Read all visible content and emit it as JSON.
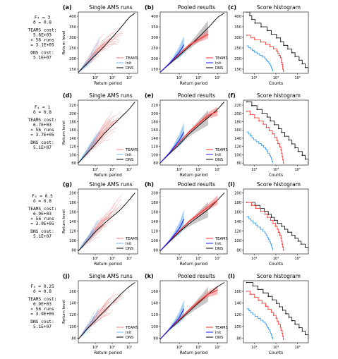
{
  "colors": {
    "teams_line": "#ff2a2a",
    "teams_single": "#f08080",
    "init_line": "#1a1aff",
    "init_single": "#7ab8f0",
    "init_band": "#5aa6ee",
    "teams_band": "#f27b7b",
    "dns_line": "#000000",
    "dns_band": "#9a9a9a",
    "init_hist": "#1e90ff"
  },
  "column_titles": [
    "Single AMS runs",
    "Pooled results",
    "Score histogram"
  ],
  "xlabels": [
    "Return period",
    "Return period",
    "Counts"
  ],
  "ylabel": "Return level",
  "legend_labels": [
    "TEAMS",
    "Init",
    "DNS"
  ],
  "rows": [
    {
      "param_line": "F₄ = 3",
      "delta_line": "δ = 0.8",
      "teams_cost_label": "TEAMS cost:",
      "teams_cost_value": "5.6E+03",
      "runs_line": "× 56 runs",
      "total_line": "= 3.1E+05",
      "dns_cost_label": "DNS cost:",
      "dns_cost_value": "5.1E+07",
      "panel_letters": [
        "(a)",
        "(b)",
        "(c)"
      ],
      "ylim": [
        130,
        420
      ],
      "yticks": [
        "150",
        "200",
        "250",
        "300",
        "350",
        "400"
      ],
      "ytick_values": [
        150,
        200,
        250,
        300,
        350,
        400
      ]
    },
    {
      "param_line": "F₄ = 1",
      "delta_line": "δ = 0.8",
      "teams_cost_label": "TEAMS cost:",
      "teams_cost_value": "6.7E+03",
      "runs_line": "× 56 runs",
      "total_line": "= 3.7E+05",
      "dns_cost_label": "DNS cost:",
      "dns_cost_value": "5.1E+07",
      "panel_letters": [
        "(d)",
        "(e)",
        "(f)"
      ],
      "ylim": [
        75,
        232
      ],
      "yticks": [
        "80",
        "100",
        "120",
        "140",
        "160",
        "180",
        "200",
        "220"
      ],
      "ytick_values": [
        80,
        100,
        120,
        140,
        160,
        180,
        200,
        220
      ]
    },
    {
      "param_line": "F₄ = 0.5",
      "delta_line": "δ = 0.8",
      "teams_cost_label": "TEAMS cost:",
      "teams_cost_value": "6.9E+03",
      "runs_line": "× 56 runs",
      "total_line": "= 3.9E+05",
      "dns_cost_label": "DNS cost:",
      "dns_cost_value": "5.1E+07",
      "panel_letters": [
        "(g)",
        "(h)",
        "(i)"
      ],
      "ylim": [
        72,
        208
      ],
      "yticks": [
        "80",
        "100",
        "120",
        "140",
        "160",
        "180",
        "200"
      ],
      "ytick_values": [
        80,
        100,
        120,
        140,
        160,
        180,
        200
      ]
    },
    {
      "param_line": "F₄ = 0.25",
      "delta_line": "δ = 0.8",
      "teams_cost_label": "TEAMS cost:",
      "teams_cost_value": "6.9E+03",
      "runs_line": "× 56 runs",
      "total_line": "= 3.9E+05",
      "dns_cost_label": "DNS cost:",
      "dns_cost_value": "5.1E+07",
      "panel_letters": [
        "(j)",
        "(k)",
        "(l)"
      ],
      "ylim": [
        72,
        178
      ],
      "yticks": [
        "80",
        "100",
        "120",
        "140",
        "160"
      ],
      "ytick_values": [
        80,
        100,
        120,
        140,
        160
      ]
    }
  ],
  "xticks_return": [
    "10³",
    "10⁵",
    "10⁷"
  ],
  "xticks_counts": [
    "10¹",
    "10³",
    "10⁵"
  ],
  "chart_data": [
    {
      "type": "line",
      "panel": "(a)",
      "title": "Single AMS runs",
      "xlabel": "Return period",
      "ylabel": "Return level",
      "xscale": "log",
      "xlim": [
        10,
        100000000.0
      ],
      "ylim": [
        130,
        420
      ],
      "series": [
        {
          "name": "DNS",
          "x": [
            10,
            100,
            1000,
            10000,
            100000,
            1000000,
            10000000,
            50000000
          ],
          "y": [
            135,
            175,
            215,
            255,
            300,
            345,
            395,
            415
          ]
        },
        {
          "name": "TEAMS",
          "x": [
            10,
            100,
            1000,
            10000,
            100000,
            1000000
          ],
          "y": [
            135,
            178,
            222,
            262,
            290,
            305
          ]
        },
        {
          "name": "Init",
          "x": [
            10,
            100,
            1000,
            3000
          ],
          "y": [
            135,
            178,
            230,
            260
          ]
        }
      ]
    },
    {
      "type": "line",
      "panel": "(b)",
      "title": "Pooled results",
      "xlabel": "Return period",
      "xscale": "log",
      "xlim": [
        10,
        100000000.0
      ],
      "ylim": [
        130,
        420
      ],
      "series": [
        {
          "name": "DNS",
          "x": [
            10,
            100,
            1000,
            10000,
            100000,
            1000000,
            10000000,
            50000000
          ],
          "y": [
            135,
            175,
            215,
            255,
            300,
            345,
            395,
            415
          ]
        },
        {
          "name": "TEAMS",
          "x": [
            10,
            100,
            1000,
            10000,
            100000,
            1000000
          ],
          "y": [
            135,
            178,
            222,
            262,
            290,
            315
          ]
        },
        {
          "name": "Init",
          "x": [
            10,
            100,
            1000,
            3000
          ],
          "y": [
            135,
            178,
            230,
            265
          ]
        }
      ]
    },
    {
      "type": "line",
      "panel": "(c)",
      "title": "Score histogram",
      "xlabel": "Counts",
      "xscale": "log",
      "xlim": [
        1,
        1000000.0
      ],
      "ylim": [
        130,
        420
      ],
      "series": [
        {
          "name": "DNS",
          "x": [
            2,
            10,
            100,
            1000,
            10000,
            100000,
            1000000
          ],
          "y": [
            420,
            370,
            340,
            300,
            250,
            200,
            140
          ]
        },
        {
          "name": "TEAMS",
          "x": [
            2,
            10,
            100,
            1000,
            3000,
            5000
          ],
          "y": [
            310,
            290,
            270,
            240,
            200,
            140
          ]
        },
        {
          "name": "Init",
          "x": [
            2,
            10,
            100,
            300,
            500
          ],
          "y": [
            260,
            230,
            200,
            170,
            140
          ]
        }
      ]
    },
    {
      "type": "line",
      "panel": "(d)",
      "title": "Single AMS runs",
      "xlabel": "Return period",
      "ylabel": "Return level",
      "xscale": "log",
      "xlim": [
        10,
        100000000.0
      ],
      "ylim": [
        75,
        232
      ],
      "series": [
        {
          "name": "DNS",
          "x": [
            10,
            100,
            1000,
            10000,
            100000,
            1000000,
            10000000,
            50000000
          ],
          "y": [
            80,
            103,
            125,
            150,
            170,
            190,
            210,
            228
          ]
        },
        {
          "name": "TEAMS",
          "x": [
            10,
            100,
            1000,
            10000,
            100000,
            1000000,
            10000000
          ],
          "y": [
            80,
            105,
            130,
            155,
            175,
            190,
            205
          ]
        },
        {
          "name": "Init",
          "x": [
            10,
            100,
            1000,
            3000
          ],
          "y": [
            80,
            105,
            135,
            150
          ]
        }
      ]
    },
    {
      "type": "line",
      "panel": "(e)",
      "title": "Pooled results",
      "xlabel": "Return period",
      "xscale": "log",
      "xlim": [
        10,
        100000000.0
      ],
      "ylim": [
        75,
        232
      ],
      "series": [
        {
          "name": "DNS",
          "x": [
            10,
            100,
            1000,
            10000,
            100000,
            1000000,
            10000000,
            50000000
          ],
          "y": [
            80,
            103,
            125,
            150,
            170,
            190,
            210,
            228
          ]
        },
        {
          "name": "TEAMS",
          "x": [
            10,
            100,
            1000,
            10000,
            100000,
            1000000,
            10000000
          ],
          "y": [
            80,
            105,
            130,
            155,
            175,
            195,
            205
          ]
        },
        {
          "name": "Init",
          "x": [
            10,
            100,
            1000,
            3000
          ],
          "y": [
            80,
            105,
            135,
            155
          ]
        }
      ]
    },
    {
      "type": "line",
      "panel": "(f)",
      "title": "Score histogram",
      "xlabel": "Counts",
      "xscale": "log",
      "xlim": [
        1,
        1000000.0
      ],
      "ylim": [
        75,
        232
      ],
      "series": [
        {
          "name": "DNS",
          "x": [
            2,
            10,
            100,
            1000,
            10000,
            100000,
            1000000
          ],
          "y": [
            228,
            215,
            195,
            170,
            140,
            110,
            80
          ]
        },
        {
          "name": "TEAMS",
          "x": [
            2,
            10,
            100,
            1000,
            3000,
            5000
          ],
          "y": [
            205,
            190,
            170,
            140,
            110,
            80
          ]
        },
        {
          "name": "Init",
          "x": [
            2,
            10,
            100,
            300,
            500
          ],
          "y": [
            155,
            135,
            115,
            95,
            80
          ]
        }
      ]
    },
    {
      "type": "line",
      "panel": "(g)",
      "title": "Single AMS runs",
      "xlabel": "Return period",
      "ylabel": "Return level",
      "xscale": "log",
      "xlim": [
        10,
        100000000.0
      ],
      "ylim": [
        72,
        208
      ],
      "series": [
        {
          "name": "DNS",
          "x": [
            10,
            100,
            1000,
            10000,
            100000,
            1000000,
            10000000,
            50000000
          ],
          "y": [
            78,
            98,
            118,
            135,
            150,
            165,
            185,
            200
          ]
        },
        {
          "name": "TEAMS",
          "x": [
            10,
            100,
            1000,
            10000,
            100000,
            1000000
          ],
          "y": [
            78,
            100,
            120,
            140,
            155,
            175
          ]
        },
        {
          "name": "Init",
          "x": [
            10,
            100,
            1000,
            3000
          ],
          "y": [
            78,
            100,
            125,
            140
          ]
        }
      ]
    },
    {
      "type": "line",
      "panel": "(h)",
      "title": "Pooled results",
      "xlabel": "Return period",
      "xscale": "log",
      "xlim": [
        10,
        100000000.0
      ],
      "ylim": [
        72,
        208
      ],
      "series": [
        {
          "name": "DNS",
          "x": [
            10,
            100,
            1000,
            10000,
            100000,
            1000000,
            10000000,
            50000000
          ],
          "y": [
            78,
            98,
            118,
            135,
            150,
            165,
            185,
            200
          ]
        },
        {
          "name": "TEAMS",
          "x": [
            10,
            100,
            1000,
            10000,
            100000,
            1000000,
            10000000
          ],
          "y": [
            78,
            100,
            120,
            140,
            155,
            170,
            185
          ]
        },
        {
          "name": "Init",
          "x": [
            10,
            100,
            1000,
            3000
          ],
          "y": [
            78,
            100,
            125,
            145
          ]
        }
      ]
    },
    {
      "type": "line",
      "panel": "(i)",
      "title": "Score histogram",
      "xlabel": "Counts",
      "xscale": "log",
      "xlim": [
        1,
        1000000.0
      ],
      "ylim": [
        72,
        208
      ],
      "series": [
        {
          "name": "DNS",
          "x": [
            2,
            10,
            100,
            1000,
            10000,
            100000,
            1000000
          ],
          "y": [
            180,
            175,
            160,
            140,
            120,
            100,
            80
          ]
        },
        {
          "name": "TEAMS",
          "x": [
            2,
            10,
            100,
            1000,
            3000,
            5000
          ],
          "y": [
            180,
            170,
            155,
            130,
            105,
            80
          ]
        },
        {
          "name": "Init",
          "x": [
            2,
            10,
            100,
            300,
            500
          ],
          "y": [
            150,
            135,
            115,
            95,
            80
          ]
        }
      ]
    },
    {
      "type": "line",
      "panel": "(j)",
      "title": "Single AMS runs",
      "xlabel": "Return period",
      "ylabel": "Return level",
      "xscale": "log",
      "xlim": [
        10,
        100000000.0
      ],
      "ylim": [
        72,
        178
      ],
      "series": [
        {
          "name": "DNS",
          "x": [
            10,
            100,
            1000,
            10000,
            100000,
            1000000,
            10000000,
            50000000
          ],
          "y": [
            78,
            95,
            110,
            125,
            140,
            155,
            168,
            175
          ]
        },
        {
          "name": "TEAMS",
          "x": [
            10,
            100,
            1000,
            10000,
            100000,
            1000000
          ],
          "y": [
            78,
            96,
            112,
            128,
            142,
            152
          ]
        },
        {
          "name": "Init",
          "x": [
            10,
            100,
            1000,
            3000
          ],
          "y": [
            78,
            96,
            115,
            125
          ]
        }
      ]
    },
    {
      "type": "line",
      "panel": "(k)",
      "title": "Pooled results",
      "xlabel": "Return period",
      "xscale": "log",
      "xlim": [
        10,
        100000000.0
      ],
      "ylim": [
        72,
        178
      ],
      "series": [
        {
          "name": "DNS",
          "x": [
            10,
            100,
            1000,
            10000,
            100000,
            1000000,
            10000000,
            50000000
          ],
          "y": [
            78,
            95,
            110,
            125,
            140,
            155,
            168,
            175
          ]
        },
        {
          "name": "TEAMS",
          "x": [
            10,
            100,
            1000,
            10000,
            100000,
            1000000,
            10000000
          ],
          "y": [
            78,
            96,
            112,
            128,
            142,
            155,
            162
          ]
        },
        {
          "name": "Init",
          "x": [
            10,
            100,
            1000,
            3000
          ],
          "y": [
            78,
            96,
            115,
            130
          ]
        }
      ]
    },
    {
      "type": "line",
      "panel": "(l)",
      "title": "Score histogram",
      "xlabel": "Counts",
      "xscale": "log",
      "xlim": [
        1,
        1000000.0
      ],
      "ylim": [
        72,
        178
      ],
      "series": [
        {
          "name": "DNS",
          "x": [
            2,
            10,
            100,
            1000,
            10000,
            100000,
            1000000
          ],
          "y": [
            175,
            168,
            155,
            140,
            120,
            100,
            80
          ]
        },
        {
          "name": "TEAMS",
          "x": [
            2,
            10,
            100,
            1000,
            3000,
            5000
          ],
          "y": [
            160,
            150,
            135,
            115,
            95,
            78
          ]
        },
        {
          "name": "Init",
          "x": [
            2,
            10,
            100,
            300,
            500
          ],
          "y": [
            130,
            118,
            105,
            90,
            78
          ]
        }
      ]
    }
  ]
}
